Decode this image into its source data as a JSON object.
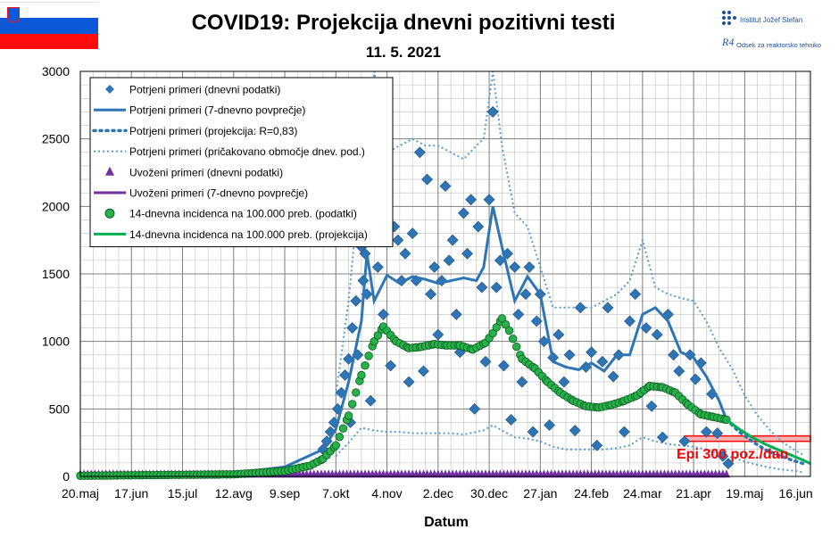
{
  "header": {
    "title": "COVID19: Projekcija dnevni pozitivni testi",
    "date": "11. 5. 2021",
    "institute": "Institut Jožef Stefan",
    "department": "Odsek za reaktorsko tehniko",
    "department_logo": "R4"
  },
  "colors": {
    "confirmed": "#2e75b6",
    "confirmed_marker": "#2e75b6",
    "confirmed_band": "#5b9bd5",
    "imported": "#7030a0",
    "incidence_marker": "#1f9e3a",
    "incidence_line": "#00b050",
    "epi_band": "#ff0000",
    "epi_text": "#ff0000"
  },
  "chart_data": {
    "type": "line",
    "xlabel": "Datum",
    "ylabel": "",
    "ylim": [
      0,
      3000
    ],
    "yticks": [
      0,
      500,
      1000,
      1500,
      2000,
      2500,
      3000
    ],
    "xlim": [
      "2020-05-20",
      "2021-06-24"
    ],
    "xtick_labels": [
      "20.maj",
      "17.jun",
      "15.jul",
      "12.avg",
      "9.sep",
      "7.okt",
      "4.nov",
      "2.dec",
      "30.dec",
      "27.jan",
      "24.feb",
      "24.mar",
      "21.apr",
      "19.maj",
      "16.jun"
    ],
    "grid": true,
    "legend_position": "top-left",
    "legend": [
      "Potrjeni primeri (dnevni podatki)",
      "Potrjeni primeri (7-dnevno povprečje)",
      "Potrjeni primeri (projekcija: R=0,83)",
      "Potrjeni primeri (pričakovano območje dnev. pod.)",
      "Uvoženi primeri (dnevni podatki)",
      "Uvoženi primeri (7-dnevno povprečje)",
      "14-dnevna incidenca na 100.000 preb. (podatki)",
      "14-dnevna incidenca na 100.000 preb. (projekcija)"
    ],
    "annotation": "Epi 300 poz./dan",
    "epi_threshold": [
      260,
      300
    ],
    "series": [
      {
        "name": "Potrjeni primeri (7-dnevno povprečje)",
        "x": [
          "2020-05-20",
          "2020-07-15",
          "2020-08-12",
          "2020-09-09",
          "2020-09-30",
          "2020-10-07",
          "2020-10-14",
          "2020-10-21",
          "2020-10-24",
          "2020-10-28",
          "2020-11-04",
          "2020-11-11",
          "2020-11-18",
          "2020-11-25",
          "2020-12-02",
          "2020-12-09",
          "2020-12-16",
          "2020-12-23",
          "2020-12-27",
          "2021-01-01",
          "2021-01-06",
          "2021-01-13",
          "2021-01-20",
          "2021-01-27",
          "2021-02-03",
          "2021-02-10",
          "2021-02-17",
          "2021-02-24",
          "2021-03-03",
          "2021-03-10",
          "2021-03-17",
          "2021-03-24",
          "2021-03-31",
          "2021-04-07",
          "2021-04-14",
          "2021-04-21",
          "2021-04-28",
          "2021-05-05",
          "2021-05-09"
        ],
        "y": [
          15,
          20,
          25,
          70,
          200,
          350,
          700,
          1150,
          1650,
          1300,
          1490,
          1430,
          1480,
          1460,
          1430,
          1450,
          1470,
          1450,
          1550,
          2000,
          1700,
          1300,
          1480,
          1350,
          850,
          810,
          790,
          840,
          780,
          900,
          900,
          1200,
          1250,
          1150,
          920,
          880,
          740,
          560,
          420
        ]
      },
      {
        "name": "Potrjeni primeri (projekcija: R=0,83)",
        "x": [
          "2021-05-09",
          "2021-05-16",
          "2021-05-23",
          "2021-05-30",
          "2021-06-06",
          "2021-06-13",
          "2021-06-20"
        ],
        "y": [
          420,
          330,
          260,
          200,
          160,
          125,
          95
        ]
      },
      {
        "name": "Potrjeni primeri (pričakovano območje dnev. pod.) zgornja",
        "x": [
          "2020-10-07",
          "2020-10-14",
          "2020-10-21",
          "2020-10-28",
          "2020-11-04",
          "2020-11-11",
          "2020-11-18",
          "2020-11-25",
          "2020-12-02",
          "2020-12-09",
          "2020-12-16",
          "2020-12-23",
          "2020-12-27",
          "2021-01-01",
          "2021-01-06",
          "2021-01-13",
          "2021-01-20",
          "2021-01-27",
          "2021-02-03",
          "2021-02-10",
          "2021-02-17",
          "2021-02-24",
          "2021-03-03",
          "2021-03-10",
          "2021-03-17",
          "2021-03-24",
          "2021-03-31",
          "2021-04-07",
          "2021-04-14",
          "2021-04-21",
          "2021-04-28",
          "2021-05-05",
          "2021-05-12",
          "2021-05-19",
          "2021-05-26",
          "2021-06-02",
          "2021-06-09",
          "2021-06-16",
          "2021-06-20"
        ],
        "y": [
          600,
          1300,
          2300,
          3000,
          2400,
          2450,
          2500,
          2450,
          2450,
          2400,
          2350,
          2450,
          2500,
          3000,
          2450,
          1950,
          1850,
          1550,
          1250,
          1250,
          1250,
          1250,
          1300,
          1350,
          1450,
          1750,
          1400,
          1350,
          1320,
          1300,
          1150,
          950,
          800,
          600,
          450,
          340,
          250,
          190,
          160
        ]
      },
      {
        "name": "Potrjeni primeri (pričakovano območje dnev. pod.) spodnja",
        "x": [
          "2020-10-07",
          "2020-10-14",
          "2020-10-21",
          "2020-10-28",
          "2020-11-04",
          "2020-11-11",
          "2020-11-18",
          "2020-11-25",
          "2020-12-02",
          "2020-12-09",
          "2020-12-16",
          "2020-12-23",
          "2020-12-27",
          "2021-01-01",
          "2021-01-06",
          "2021-01-13",
          "2021-01-20",
          "2021-01-27",
          "2021-02-03",
          "2021-02-10",
          "2021-02-17",
          "2021-02-24",
          "2021-03-03",
          "2021-03-10",
          "2021-03-17",
          "2021-03-24",
          "2021-03-31",
          "2021-04-07",
          "2021-04-14",
          "2021-04-21",
          "2021-04-28",
          "2021-05-05",
          "2021-05-12",
          "2021-05-19",
          "2021-05-26",
          "2021-06-02",
          "2021-06-09",
          "2021-06-16",
          "2021-06-20"
        ],
        "y": [
          150,
          250,
          360,
          340,
          330,
          330,
          320,
          320,
          320,
          320,
          310,
          330,
          340,
          380,
          340,
          290,
          280,
          260,
          220,
          200,
          200,
          200,
          200,
          210,
          230,
          290,
          260,
          240,
          230,
          220,
          200,
          170,
          140,
          110,
          85,
          65,
          50,
          40,
          30
        ]
      },
      {
        "name": "Uvoženi primeri (7-dnevno povprečje)",
        "x": [
          "2020-05-20",
          "2020-08-12",
          "2020-10-07",
          "2021-01-01",
          "2021-05-09"
        ],
        "y": [
          2,
          5,
          8,
          8,
          5
        ]
      },
      {
        "name": "14-dnevna incidenca na 100.000 preb. (podatki)",
        "x": [
          "2020-05-20",
          "2020-08-12",
          "2020-09-09",
          "2020-09-23",
          "2020-09-30",
          "2020-10-07",
          "2020-10-14",
          "2020-10-21",
          "2020-10-28",
          "2020-11-02",
          "2020-11-09",
          "2020-11-16",
          "2020-11-23",
          "2020-11-30",
          "2020-12-07",
          "2020-12-14",
          "2020-12-21",
          "2020-12-28",
          "2021-01-01",
          "2021-01-06",
          "2021-01-10",
          "2021-01-17",
          "2021-01-24",
          "2021-01-31",
          "2021-02-07",
          "2021-02-14",
          "2021-02-21",
          "2021-02-28",
          "2021-03-07",
          "2021-03-14",
          "2021-03-21",
          "2021-03-28",
          "2021-04-04",
          "2021-04-11",
          "2021-04-18",
          "2021-04-25",
          "2021-05-02",
          "2021-05-09"
        ],
        "y": [
          5,
          15,
          40,
          80,
          130,
          230,
          450,
          750,
          1000,
          1110,
          1000,
          950,
          960,
          980,
          970,
          970,
          940,
          990,
          1060,
          1170,
          1080,
          870,
          800,
          700,
          620,
          560,
          520,
          510,
          530,
          560,
          600,
          670,
          660,
          620,
          530,
          460,
          440,
          420
        ]
      },
      {
        "name": "14-dnevna incidenca na 100.000 preb. (projekcija)",
        "x": [
          "2021-05-09",
          "2021-05-16",
          "2021-05-23",
          "2021-05-30",
          "2021-06-06",
          "2021-06-13",
          "2021-06-20",
          "2021-06-24"
        ],
        "y": [
          420,
          350,
          290,
          240,
          200,
          160,
          120,
          95
        ]
      }
    ],
    "daily_confirmed": {
      "name": "Potrjeni primeri (dnevni podatki)",
      "x": [
        "2020-09-30",
        "2020-10-02",
        "2020-10-04",
        "2020-10-06",
        "2020-10-08",
        "2020-10-10",
        "2020-10-12",
        "2020-10-14",
        "2020-10-15",
        "2020-10-16",
        "2020-10-18",
        "2020-10-19",
        "2020-10-21",
        "2020-10-22",
        "2020-10-23",
        "2020-10-24",
        "2020-10-26",
        "2020-10-28",
        "2020-10-30",
        "2020-11-02",
        "2020-11-04",
        "2020-11-06",
        "2020-11-08",
        "2020-11-10",
        "2020-11-12",
        "2020-11-14",
        "2020-11-16",
        "2020-11-18",
        "2020-11-20",
        "2020-11-22",
        "2020-11-24",
        "2020-11-26",
        "2020-11-28",
        "2020-11-30",
        "2020-12-02",
        "2020-12-04",
        "2020-12-06",
        "2020-12-08",
        "2020-12-10",
        "2020-12-12",
        "2020-12-14",
        "2020-12-16",
        "2020-12-18",
        "2020-12-20",
        "2020-12-22",
        "2020-12-24",
        "2020-12-26",
        "2020-12-28",
        "2020-12-30",
        "2021-01-01",
        "2021-01-03",
        "2021-01-05",
        "2021-01-07",
        "2021-01-09",
        "2021-01-11",
        "2021-01-13",
        "2021-01-15",
        "2021-01-17",
        "2021-01-19",
        "2021-01-21",
        "2021-01-23",
        "2021-01-25",
        "2021-01-27",
        "2021-01-29",
        "2021-02-01",
        "2021-02-03",
        "2021-02-06",
        "2021-02-09",
        "2021-02-12",
        "2021-02-15",
        "2021-02-18",
        "2021-02-21",
        "2021-02-24",
        "2021-02-27",
        "2021-03-02",
        "2021-03-05",
        "2021-03-08",
        "2021-03-11",
        "2021-03-14",
        "2021-03-17",
        "2021-03-20",
        "2021-03-23",
        "2021-03-26",
        "2021-03-29",
        "2021-04-01",
        "2021-04-04",
        "2021-04-07",
        "2021-04-10",
        "2021-04-13",
        "2021-04-16",
        "2021-04-19",
        "2021-04-22",
        "2021-04-25",
        "2021-04-28",
        "2021-05-01",
        "2021-05-04",
        "2021-05-07",
        "2021-05-10"
      ],
      "y": [
        200,
        260,
        330,
        400,
        500,
        620,
        750,
        870,
        400,
        1100,
        1300,
        900,
        1700,
        1450,
        1650,
        1350,
        560,
        1800,
        1550,
        1200,
        2200,
        820,
        1850,
        1750,
        1450,
        1650,
        700,
        1800,
        1450,
        2400,
        780,
        2200,
        1350,
        1550,
        1050,
        1450,
        2150,
        1600,
        1750,
        1200,
        920,
        1950,
        1650,
        2050,
        500,
        1850,
        1400,
        850,
        2050,
        2700,
        1400,
        1600,
        820,
        1650,
        420,
        1550,
        1200,
        700,
        1350,
        1550,
        330,
        1150,
        1350,
        1000,
        380,
        880,
        1050,
        700,
        900,
        340,
        1250,
        810,
        920,
        230,
        850,
        1250,
        740,
        900,
        330,
        1150,
        1350,
        620,
        1100,
        520,
        1050,
        290,
        1200,
        900,
        780,
        260,
        900,
        720,
        840,
        330,
        610,
        320,
        150,
        95
      ]
    },
    "imported_daily": {
      "name": "Uvoženi primeri (dnevni podatki)",
      "x_start": "2020-05-20",
      "x_end": "2021-05-10",
      "y": 5
    }
  }
}
